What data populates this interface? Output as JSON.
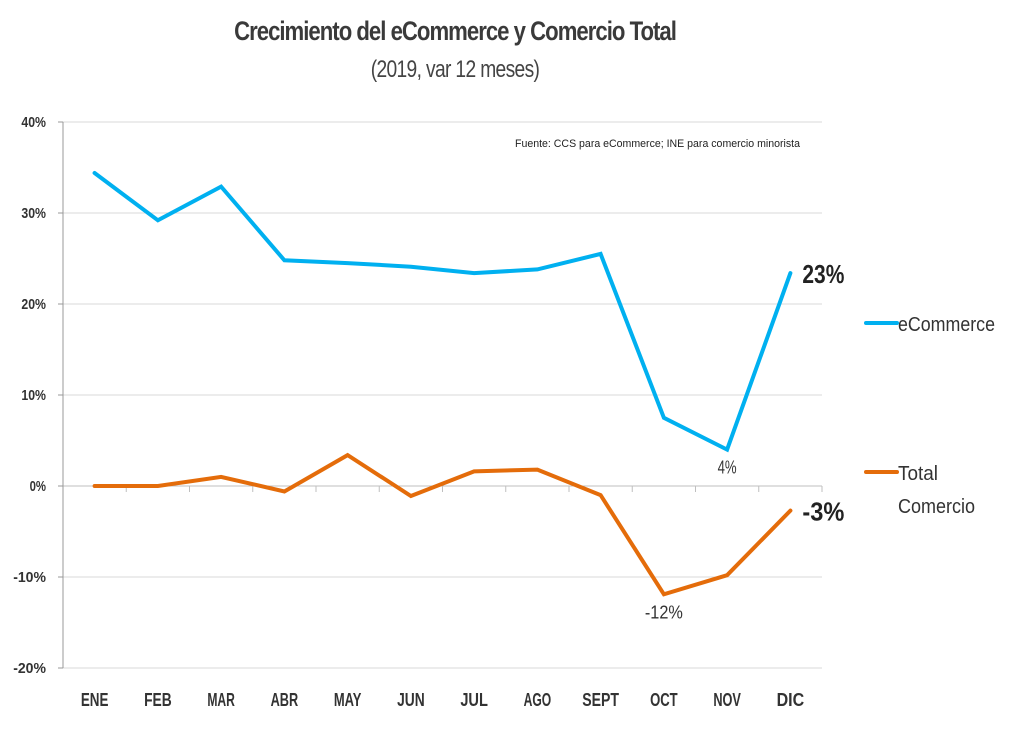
{
  "chart_data": {
    "type": "line",
    "title": "Crecimiento del eCommerce y Comercio Total",
    "subtitle": "(2019, var 12 meses)",
    "source_note": "Fuente: CCS para eCommerce; INE para comercio minorista",
    "xlabel": "",
    "ylabel": "",
    "categories": [
      "ENE",
      "FEB",
      "MAR",
      "ABR",
      "MAY",
      "JUN",
      "JUL",
      "AGO",
      "SEPT",
      "OCT",
      "NOV",
      "DIC"
    ],
    "ylim": [
      -20,
      40
    ],
    "yticks": [
      40,
      30,
      20,
      10,
      0,
      -10,
      -20
    ],
    "ytick_labels": [
      "40%",
      "30%",
      "20%",
      "10%",
      "0%",
      "-10%",
      "-20%"
    ],
    "grid": true,
    "legend_position": "right",
    "series": [
      {
        "name": "eCommerce",
        "color": "#00B0F0",
        "values": [
          34.4,
          29.2,
          32.9,
          24.8,
          24.5,
          24.1,
          23.4,
          23.8,
          25.5,
          7.5,
          4.0,
          23.4
        ]
      },
      {
        "name": "Total Comercio",
        "legend_lines": [
          "Total",
          "Comercio"
        ],
        "color": "#E46C0A",
        "values": [
          0.0,
          0.0,
          1.0,
          -0.6,
          3.4,
          -1.1,
          1.6,
          1.8,
          -1.0,
          -11.9,
          -9.8,
          -2.7
        ]
      }
    ],
    "annotations": [
      {
        "text": "23%",
        "series": 0,
        "index": 11,
        "style": "big"
      },
      {
        "text": "4%",
        "series": 0,
        "index": 10,
        "style": "normal"
      },
      {
        "text": "-3%",
        "series": 1,
        "index": 11,
        "style": "big"
      },
      {
        "text": "-12%",
        "series": 1,
        "index": 9,
        "style": "normal"
      }
    ]
  }
}
